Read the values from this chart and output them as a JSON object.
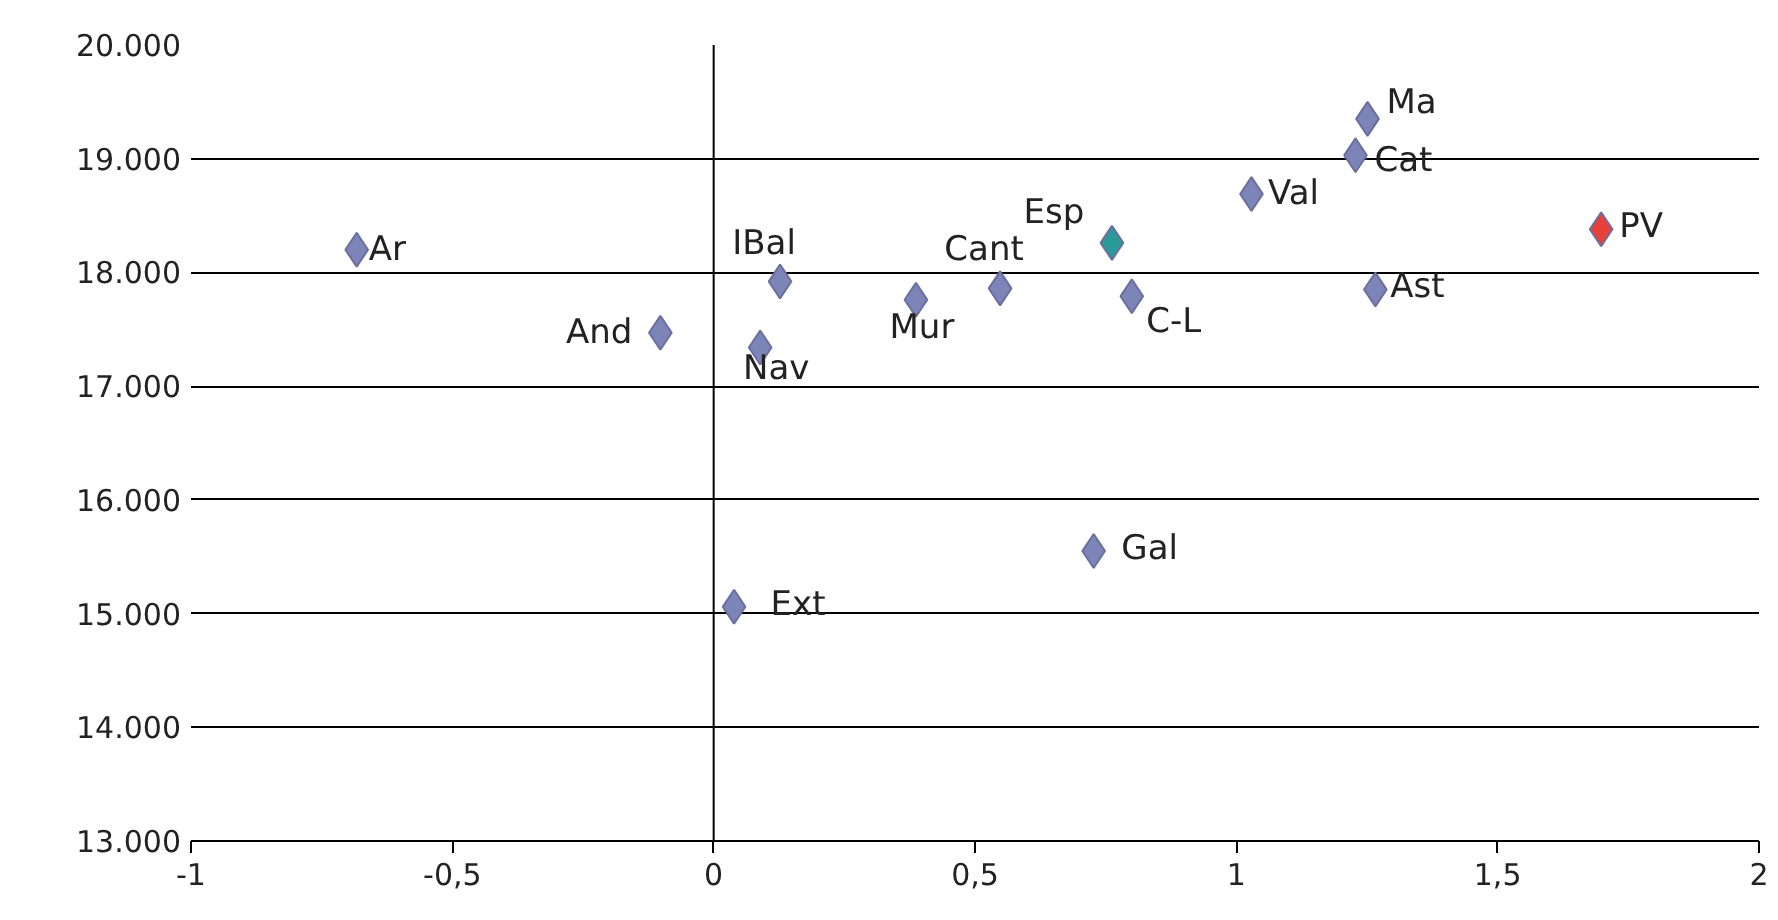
{
  "chart_data": {
    "type": "scatter",
    "marker": "diamond",
    "grid": "y",
    "x": [
      -0.683,
      -0.102,
      0.127,
      0.089,
      0.387,
      0.548,
      0.762,
      0.8,
      0.727,
      0.039,
      1.029,
      1.228,
      1.251,
      1.266,
      1.698
    ],
    "values": [
      18200,
      17470,
      17920,
      17340,
      17760,
      17860,
      18260,
      17790,
      15550,
      15060,
      18690,
      19030,
      19350,
      17850,
      18380
    ],
    "colors": [
      "#7c84b8",
      "#7c84b8",
      "#7c84b8",
      "#7c84b8",
      "#7c84b8",
      "#7c84b8",
      "#2a9a98",
      "#7c84b8",
      "#7c84b8",
      "#7c84b8",
      "#7c84b8",
      "#7c84b8",
      "#7c84b8",
      "#7c84b8",
      "#e8403a"
    ],
    "annotations": [
      {
        "text": "Ar",
        "x": -0.683,
        "y": 18200
      },
      {
        "text": "And",
        "x": -0.102,
        "y": 17470
      },
      {
        "text": "IBal",
        "x": 0.127,
        "y": 17920
      },
      {
        "text": "Nav",
        "x": 0.089,
        "y": 17340
      },
      {
        "text": "Mur",
        "x": 0.387,
        "y": 17760
      },
      {
        "text": "Cant",
        "x": 0.548,
        "y": 17860
      },
      {
        "text": "Esp",
        "x": 0.762,
        "y": 18260
      },
      {
        "text": "C-L",
        "x": 0.8,
        "y": 17790
      },
      {
        "text": "Gal",
        "x": 0.727,
        "y": 15550
      },
      {
        "text": "Ext",
        "x": 0.039,
        "y": 15060
      },
      {
        "text": "Val",
        "x": 1.029,
        "y": 18690
      },
      {
        "text": "Cat",
        "x": 1.228,
        "y": 19030
      },
      {
        "text": "Ma",
        "x": 1.251,
        "y": 19350
      },
      {
        "text": "Ast",
        "x": 1.266,
        "y": 17850
      },
      {
        "text": "PV",
        "x": 1.698,
        "y": 18380
      }
    ],
    "xlim": [
      -1,
      2
    ],
    "ylim": [
      13000,
      20000
    ],
    "xticks": [
      -1,
      {
        "value": -0.5,
        "label": "-0,5"
      },
      0,
      {
        "value": 0.5,
        "label": "0,5"
      },
      1,
      {
        "value": 1.5,
        "label": "1,5"
      },
      2
    ],
    "yticks": [
      {
        "value": 13000,
        "label": "13.000"
      },
      {
        "value": 14000,
        "label": "14.000"
      },
      {
        "value": 15000,
        "label": "15.000"
      },
      {
        "value": 16000,
        "label": "16.000"
      },
      {
        "value": 17000,
        "label": "17.000"
      },
      {
        "value": 18000,
        "label": "18.000"
      },
      {
        "value": 19000,
        "label": "19.000"
      },
      {
        "value": 20000,
        "label": "20.000"
      }
    ],
    "ref_lines": [
      {
        "axis": "x",
        "value": 0,
        "color": "#000000"
      }
    ]
  }
}
